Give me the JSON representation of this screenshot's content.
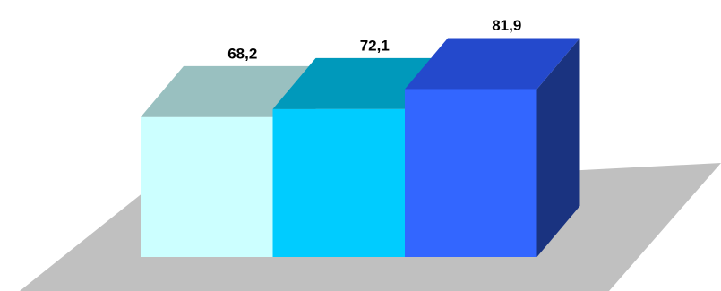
{
  "chart_data": {
    "type": "bar3d",
    "values": [
      68.2,
      72.1,
      81.9
    ],
    "value_labels": [
      "68,2",
      "72,1",
      "81,9"
    ],
    "colors": [
      "#ccffff",
      "#00ccff",
      "#3366ff"
    ],
    "top_colors": [
      "#99c0c0",
      "#0099bb",
      "#2449cc"
    ],
    "side_colors": [
      "#7fa0a0",
      "#007799",
      "#1a3380"
    ]
  }
}
